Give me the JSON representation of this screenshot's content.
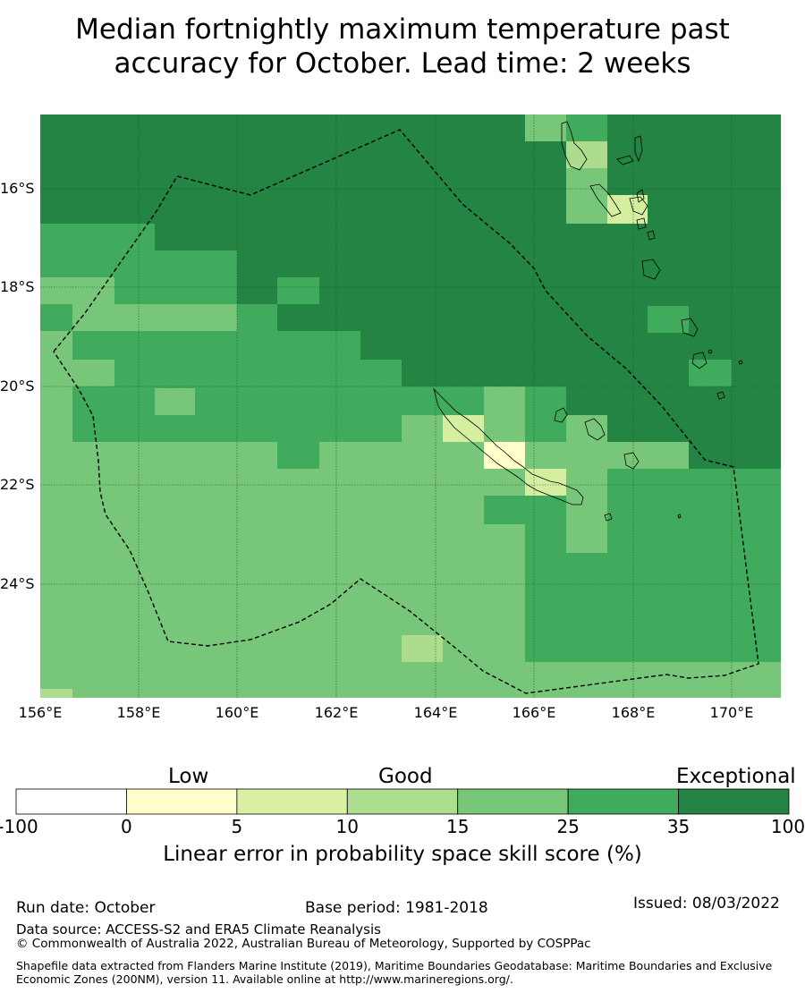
{
  "title": {
    "line1": "Median fortnightly maximum temperature past",
    "line2": "accuracy for October. Lead time: 2 weeks"
  },
  "map": {
    "lat_labels": [
      "16°S",
      "18°S",
      "20°S",
      "22°S",
      "24°S"
    ],
    "lon_labels": [
      "156°E",
      "158°E",
      "160°E",
      "162°E",
      "164°E",
      "166°E",
      "168°E",
      "170°E"
    ],
    "colors": {
      "c5": "#d5eea0",
      "c10": "#acdc8c",
      "c15": "#78c679",
      "c25": "#41ab5d",
      "c35": "#238443",
      "c0": "#ffffcc"
    }
  },
  "colorbar": {
    "categories": [
      "Low",
      "Good",
      "Exceptional"
    ],
    "ticks": [
      "-100",
      "0",
      "5",
      "10",
      "15",
      "25",
      "35",
      "100"
    ],
    "colors": [
      "#ffffff",
      "#ffffcc",
      "#d9f0a3",
      "#addd8e",
      "#78c679",
      "#41ab5d",
      "#238443"
    ],
    "label": "Linear error in probability space skill score (%)"
  },
  "footer": {
    "run_date": "Run date: October",
    "base_period": "Base period: 1981-2018",
    "issued": "Issued: 08/03/2022",
    "data_source": "Data source: ACCESS-S2 and ERA5 Climate Reanalysis",
    "copyright": "© Commonwealth of Australia 2022, Australian Bureau of Meteorology, Supported by COSPPac",
    "shapefile": "Shapefile data extracted from Flanders Marine Institute (2019), Maritime Boundaries Geodatabase: Maritime Boundaries and Exclusive Economic Zones (200NM), version 11. Available online at http://www.marineregions.org/."
  }
}
